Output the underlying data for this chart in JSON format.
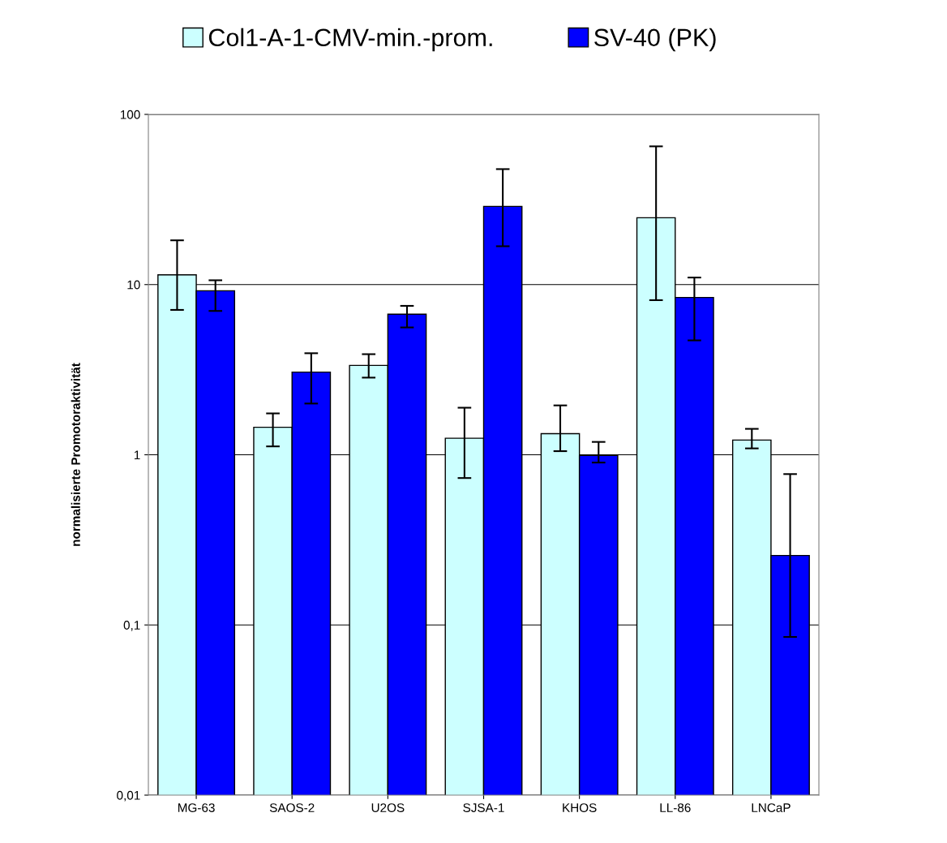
{
  "chart_data": {
    "type": "bar",
    "ylabel": "normalisierte Promotoraktivität",
    "categories": [
      "MG-63",
      "SAOS-2",
      "U2OS",
      "SJSA-1",
      "KHOS",
      "LL-86",
      "LNCaP"
    ],
    "series": [
      {
        "name": "Col1-A-1-CMV-min.-prom.",
        "color": "#ccffff",
        "values": [
          11.4,
          1.45,
          3.35,
          1.25,
          1.33,
          24.7,
          1.22
        ],
        "errors": [
          [
            7.1,
            18.2
          ],
          [
            1.12,
            1.75
          ],
          [
            2.84,
            3.9
          ],
          [
            0.73,
            1.89
          ],
          [
            1.05,
            1.95
          ],
          [
            8.1,
            64.9
          ],
          [
            1.09,
            1.42
          ]
        ]
      },
      {
        "name": "SV-40 (PK)",
        "color": "#0000ff",
        "values": [
          9.2,
          3.06,
          6.7,
          28.8,
          0.99,
          8.4,
          0.256
        ],
        "errors": [
          [
            7.0,
            10.6
          ],
          [
            2.0,
            3.95
          ],
          [
            5.6,
            7.5
          ],
          [
            16.8,
            47.7
          ],
          [
            0.9,
            1.19
          ],
          [
            4.7,
            11.0
          ],
          [
            0.085,
            0.77
          ]
        ]
      }
    ],
    "log": "y",
    "ylim": [
      0.01,
      100
    ],
    "yticks": [
      {
        "value": 0.01,
        "label": "0,01"
      },
      {
        "value": 0.1,
        "label": "0,1"
      },
      1,
      10,
      100
    ],
    "grid": "y",
    "legend": "top"
  }
}
